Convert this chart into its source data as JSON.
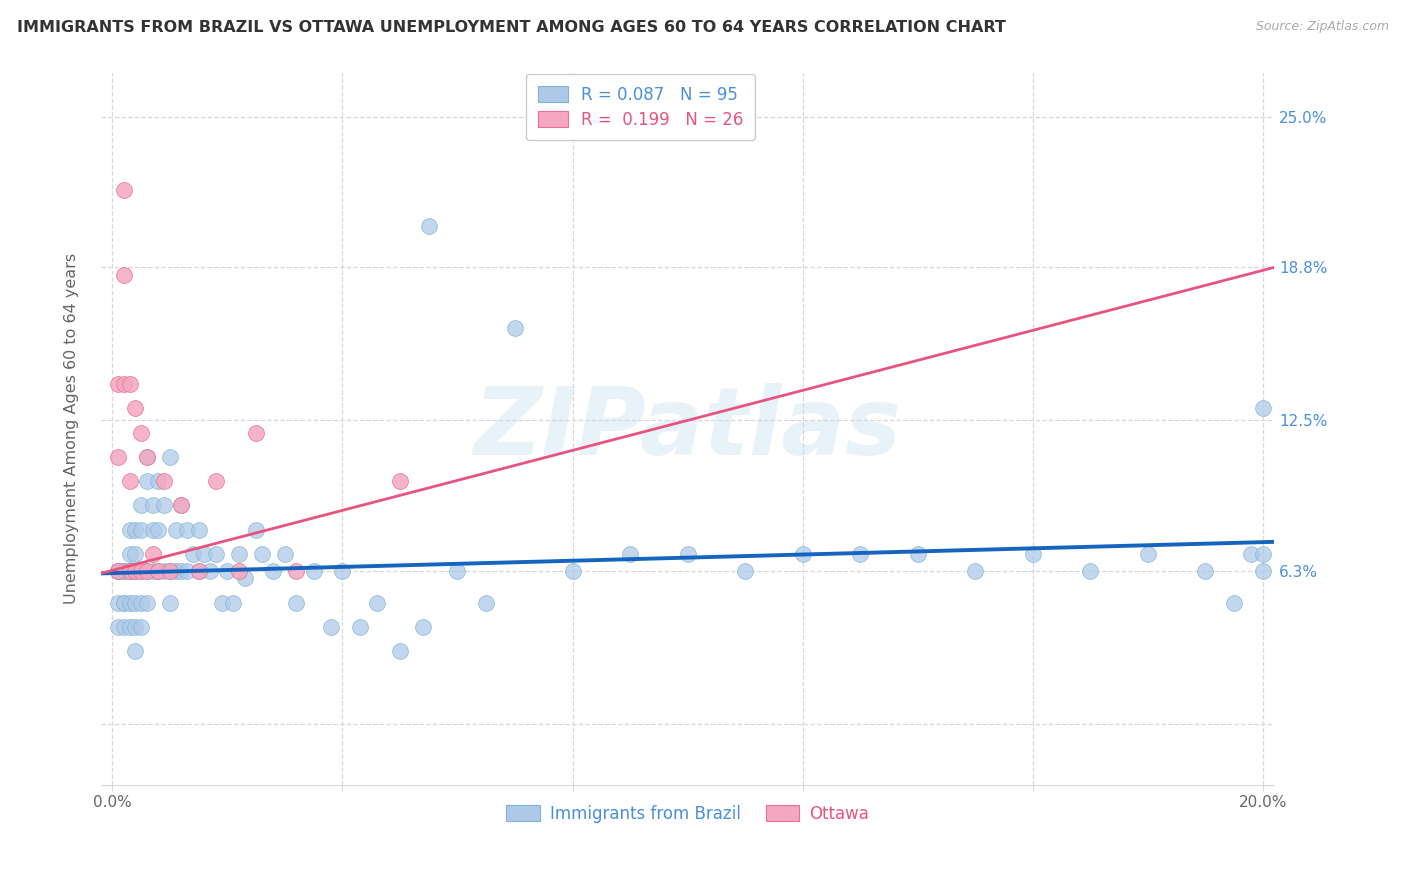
{
  "title": "IMMIGRANTS FROM BRAZIL VS OTTAWA UNEMPLOYMENT AMONG AGES 60 TO 64 YEARS CORRELATION CHART",
  "source": "Source: ZipAtlas.com",
  "ylabel": "Unemployment Among Ages 60 to 64 years",
  "legend_label1": "Immigrants from Brazil",
  "legend_label2": "Ottawa",
  "R1": 0.087,
  "N1": 95,
  "R2": 0.199,
  "N2": 26,
  "xlim": [
    -0.002,
    0.202
  ],
  "ylim": [
    -0.025,
    0.268
  ],
  "yticks": [
    0.0,
    0.063,
    0.125,
    0.188,
    0.25
  ],
  "ytick_labels": [
    "",
    "6.3%",
    "12.5%",
    "18.8%",
    "25.0%"
  ],
  "xtick_vals": [
    0.0,
    0.04,
    0.08,
    0.12,
    0.16,
    0.2
  ],
  "xtick_labels": [
    "0.0%",
    "",
    "",
    "",
    "",
    "20.0%"
  ],
  "blue_fill": "#aec9e8",
  "blue_edge": "#7fb3d3",
  "pink_fill": "#f4a7c0",
  "pink_edge": "#e87090",
  "blue_line": "#1565c0",
  "pink_line": "#e75480",
  "grid_color": "#d8d8d8",
  "text_color": "#333333",
  "axis_label_color": "#666666",
  "right_tick_color": "#4a90d9",
  "watermark_color": "#c5ddf0",
  "watermark_text": "ZIPatlas",
  "blue_line_start_y": 0.062,
  "blue_line_end_y": 0.075,
  "pink_line_start_y": 0.062,
  "pink_line_end_y": 0.188,
  "brazil_x": [
    0.001,
    0.001,
    0.001,
    0.001,
    0.001,
    0.002,
    0.002,
    0.002,
    0.002,
    0.002,
    0.002,
    0.002,
    0.003,
    0.003,
    0.003,
    0.003,
    0.003,
    0.003,
    0.004,
    0.004,
    0.004,
    0.004,
    0.004,
    0.004,
    0.004,
    0.005,
    0.005,
    0.005,
    0.005,
    0.005,
    0.006,
    0.006,
    0.006,
    0.006,
    0.007,
    0.007,
    0.007,
    0.008,
    0.008,
    0.008,
    0.009,
    0.009,
    0.01,
    0.01,
    0.01,
    0.011,
    0.011,
    0.012,
    0.012,
    0.013,
    0.013,
    0.014,
    0.015,
    0.015,
    0.016,
    0.017,
    0.018,
    0.019,
    0.02,
    0.021,
    0.022,
    0.023,
    0.025,
    0.026,
    0.028,
    0.03,
    0.032,
    0.035,
    0.038,
    0.04,
    0.043,
    0.046,
    0.05,
    0.054,
    0.055,
    0.06,
    0.065,
    0.07,
    0.08,
    0.09,
    0.1,
    0.11,
    0.12,
    0.13,
    0.14,
    0.15,
    0.16,
    0.17,
    0.18,
    0.19,
    0.195,
    0.198,
    0.2,
    0.2,
    0.2
  ],
  "brazil_y": [
    0.063,
    0.063,
    0.063,
    0.05,
    0.04,
    0.063,
    0.063,
    0.063,
    0.05,
    0.04,
    0.063,
    0.05,
    0.063,
    0.063,
    0.07,
    0.08,
    0.05,
    0.04,
    0.063,
    0.07,
    0.08,
    0.063,
    0.05,
    0.04,
    0.03,
    0.08,
    0.09,
    0.063,
    0.05,
    0.04,
    0.1,
    0.11,
    0.063,
    0.05,
    0.09,
    0.08,
    0.063,
    0.1,
    0.08,
    0.063,
    0.09,
    0.063,
    0.11,
    0.063,
    0.05,
    0.08,
    0.063,
    0.09,
    0.063,
    0.08,
    0.063,
    0.07,
    0.08,
    0.063,
    0.07,
    0.063,
    0.07,
    0.05,
    0.063,
    0.05,
    0.07,
    0.06,
    0.08,
    0.07,
    0.063,
    0.07,
    0.05,
    0.063,
    0.04,
    0.063,
    0.04,
    0.05,
    0.03,
    0.04,
    0.205,
    0.063,
    0.05,
    0.163,
    0.063,
    0.07,
    0.07,
    0.063,
    0.07,
    0.07,
    0.07,
    0.063,
    0.07,
    0.063,
    0.07,
    0.063,
    0.05,
    0.07,
    0.063,
    0.07,
    0.13
  ],
  "ottawa_x": [
    0.001,
    0.001,
    0.001,
    0.002,
    0.002,
    0.002,
    0.003,
    0.003,
    0.003,
    0.004,
    0.004,
    0.005,
    0.005,
    0.006,
    0.006,
    0.007,
    0.008,
    0.009,
    0.01,
    0.012,
    0.015,
    0.018,
    0.022,
    0.025,
    0.032,
    0.05
  ],
  "ottawa_y": [
    0.14,
    0.11,
    0.063,
    0.22,
    0.185,
    0.14,
    0.14,
    0.1,
    0.063,
    0.13,
    0.063,
    0.12,
    0.063,
    0.11,
    0.063,
    0.07,
    0.063,
    0.1,
    0.063,
    0.09,
    0.063,
    0.1,
    0.063,
    0.12,
    0.063,
    0.1
  ]
}
